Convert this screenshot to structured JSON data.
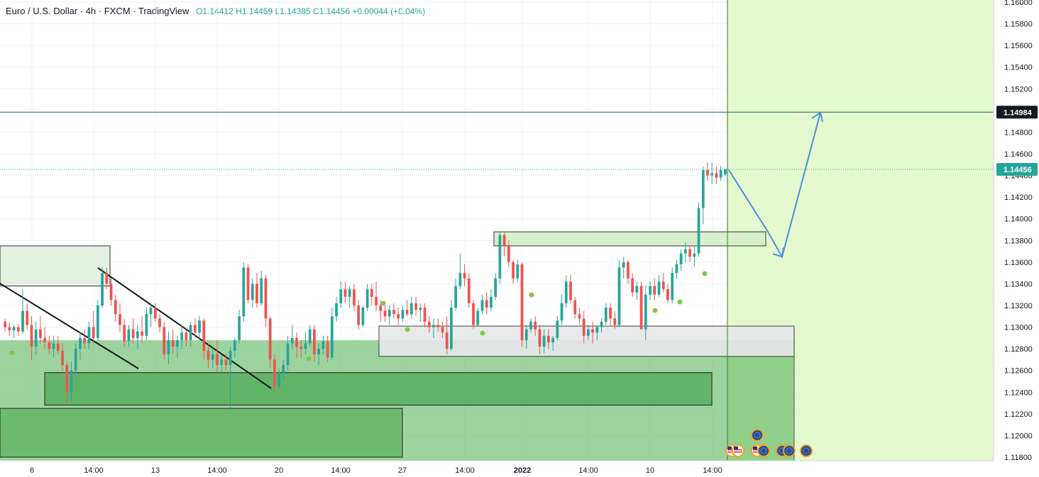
{
  "header": {
    "symbol": "Euro / U.S. Dollar · 4h · FXCM · TradingView",
    "open_label": "O",
    "open": "1.14412",
    "high_label": "H",
    "high": "1.14459",
    "low_label": "L",
    "low": "1.14385",
    "close_label": "C",
    "close": "1.14456",
    "change": "+0.00044 (+0.04%)"
  },
  "price_axis": {
    "ticks": [
      "1.16000",
      "1.15800",
      "1.15600",
      "1.15400",
      "1.15200",
      "1.15000",
      "1.14800",
      "1.14600",
      "1.14400",
      "1.14200",
      "1.14000",
      "1.13800",
      "1.13600",
      "1.13400",
      "1.13200",
      "1.13000",
      "1.12800",
      "1.12600",
      "1.12400",
      "1.12200",
      "1.12000",
      "1.11800"
    ],
    "target_label": "1.14984",
    "last_label": "1.14456"
  },
  "time_axis": {
    "ticks": [
      "6",
      "14:00",
      "13",
      "14:00",
      "20",
      "14:00",
      "27",
      "14:00",
      "2022",
      "14:00",
      "10",
      "14:00"
    ]
  },
  "colors": {
    "up": "#26a69a",
    "down": "#ef5350",
    "target_line": "#1e5f74",
    "arrow": "#4a90e2",
    "zone_green": "#4caf50",
    "forecast_bg": "#b9f08a"
  },
  "chart_data": {
    "type": "candlestick",
    "title": "Euro / U.S. Dollar · 4h · FXCM · TradingView",
    "ylim": [
      1.118,
      1.16
    ],
    "last_price": 1.14456,
    "target_price": 1.14984,
    "candles_ohlc": [
      [
        1.1305,
        1.1308,
        1.1296,
        1.13
      ],
      [
        1.13,
        1.1304,
        1.1292,
        1.1297
      ],
      [
        1.1297,
        1.1302,
        1.129,
        1.13
      ],
      [
        1.13,
        1.1303,
        1.1292,
        1.1296
      ],
      [
        1.1296,
        1.1335,
        1.1294,
        1.1315
      ],
      [
        1.1315,
        1.1322,
        1.1298,
        1.1302
      ],
      [
        1.1302,
        1.131,
        1.127,
        1.1282
      ],
      [
        1.1282,
        1.1305,
        1.1275,
        1.1298
      ],
      [
        1.1298,
        1.131,
        1.1285,
        1.129
      ],
      [
        1.129,
        1.13,
        1.128,
        1.1286
      ],
      [
        1.1286,
        1.1292,
        1.1275,
        1.128
      ],
      [
        1.128,
        1.1292,
        1.1272,
        1.1285
      ],
      [
        1.1285,
        1.1292,
        1.1275,
        1.1278
      ],
      [
        1.1278,
        1.1285,
        1.126,
        1.1265
      ],
      [
        1.1265,
        1.1268,
        1.123,
        1.124
      ],
      [
        1.124,
        1.1268,
        1.1232,
        1.126
      ],
      [
        1.126,
        1.1285,
        1.1255,
        1.128
      ],
      [
        1.128,
        1.1295,
        1.127,
        1.129
      ],
      [
        1.129,
        1.1298,
        1.128,
        1.1285
      ],
      [
        1.1285,
        1.1305,
        1.128,
        1.13
      ],
      [
        1.13,
        1.1315,
        1.1285,
        1.129
      ],
      [
        1.129,
        1.1325,
        1.1288,
        1.132
      ],
      [
        1.132,
        1.1355,
        1.1318,
        1.135
      ],
      [
        1.135,
        1.1355,
        1.1335,
        1.134
      ],
      [
        1.134,
        1.1345,
        1.132,
        1.1325
      ],
      [
        1.1325,
        1.133,
        1.1305,
        1.1312
      ],
      [
        1.1312,
        1.1322,
        1.1295,
        1.1302
      ],
      [
        1.1302,
        1.1308,
        1.1282,
        1.1287
      ],
      [
        1.1287,
        1.1302,
        1.1282,
        1.1298
      ],
      [
        1.1298,
        1.1308,
        1.1285,
        1.129
      ],
      [
        1.129,
        1.1302,
        1.128,
        1.1296
      ],
      [
        1.1296,
        1.131,
        1.1285,
        1.1292
      ],
      [
        1.1292,
        1.1318,
        1.1288,
        1.1312
      ],
      [
        1.1312,
        1.1322,
        1.13,
        1.1318
      ],
      [
        1.1318,
        1.1322,
        1.1305,
        1.1308
      ],
      [
        1.1308,
        1.1312,
        1.1295,
        1.13
      ],
      [
        1.13,
        1.1305,
        1.127,
        1.1275
      ],
      [
        1.1275,
        1.1296,
        1.1266,
        1.1288
      ],
      [
        1.1288,
        1.1298,
        1.1276,
        1.1282
      ],
      [
        1.1282,
        1.1292,
        1.1272,
        1.1288
      ],
      [
        1.1288,
        1.1302,
        1.128,
        1.1295
      ],
      [
        1.1295,
        1.1298,
        1.1282,
        1.1288
      ],
      [
        1.1288,
        1.1305,
        1.1282,
        1.1302
      ],
      [
        1.1302,
        1.1308,
        1.129,
        1.1295
      ],
      [
        1.1295,
        1.131,
        1.1288,
        1.1306
      ],
      [
        1.1306,
        1.1308,
        1.127,
        1.1278
      ],
      [
        1.1278,
        1.1285,
        1.1262,
        1.127
      ],
      [
        1.127,
        1.1282,
        1.1262,
        1.1275
      ],
      [
        1.1275,
        1.1288,
        1.1258,
        1.1265
      ],
      [
        1.1265,
        1.1275,
        1.1258,
        1.127
      ],
      [
        1.127,
        1.1275,
        1.126,
        1.1265
      ],
      [
        1.1265,
        1.1282,
        1.1224,
        1.1278
      ],
      [
        1.1278,
        1.129,
        1.1272,
        1.1288
      ],
      [
        1.1288,
        1.1316,
        1.1285,
        1.131
      ],
      [
        1.131,
        1.136,
        1.1305,
        1.1355
      ],
      [
        1.1355,
        1.1358,
        1.1322,
        1.1325
      ],
      [
        1.1325,
        1.1345,
        1.1318,
        1.134
      ],
      [
        1.134,
        1.135,
        1.1318,
        1.1322
      ],
      [
        1.1322,
        1.1352,
        1.132,
        1.1345
      ],
      [
        1.1345,
        1.1348,
        1.13,
        1.1308
      ],
      [
        1.1308,
        1.131,
        1.1262,
        1.127
      ],
      [
        1.127,
        1.1275,
        1.124,
        1.1245
      ],
      [
        1.1245,
        1.1262,
        1.1242,
        1.1258
      ],
      [
        1.1258,
        1.127,
        1.1252,
        1.1265
      ],
      [
        1.1265,
        1.1292,
        1.126,
        1.1285
      ],
      [
        1.1285,
        1.1302,
        1.128,
        1.129
      ],
      [
        1.129,
        1.1295,
        1.1272,
        1.1282
      ],
      [
        1.1282,
        1.1288,
        1.1272,
        1.128
      ],
      [
        1.128,
        1.1295,
        1.1275,
        1.1285
      ],
      [
        1.1285,
        1.1302,
        1.1282,
        1.1298
      ],
      [
        1.1298,
        1.1302,
        1.1268,
        1.1275
      ],
      [
        1.1275,
        1.1285,
        1.1265,
        1.128
      ],
      [
        1.128,
        1.1292,
        1.1275,
        1.1287
      ],
      [
        1.1287,
        1.1292,
        1.1268,
        1.1272
      ],
      [
        1.1272,
        1.1318,
        1.127,
        1.131
      ],
      [
        1.131,
        1.1328,
        1.1305,
        1.1322
      ],
      [
        1.1322,
        1.1342,
        1.1318,
        1.1335
      ],
      [
        1.1335,
        1.1342,
        1.1322,
        1.1328
      ],
      [
        1.1328,
        1.1338,
        1.1318,
        1.1335
      ],
      [
        1.1335,
        1.134,
        1.1315,
        1.132
      ],
      [
        1.132,
        1.1325,
        1.1298,
        1.1302
      ],
      [
        1.1302,
        1.132,
        1.13,
        1.1318
      ],
      [
        1.1318,
        1.134,
        1.1315,
        1.1335
      ],
      [
        1.1335,
        1.134,
        1.132,
        1.1328
      ],
      [
        1.1328,
        1.1342,
        1.1315,
        1.132
      ],
      [
        1.132,
        1.1325,
        1.1305,
        1.1315
      ],
      [
        1.1315,
        1.132,
        1.1305,
        1.131
      ],
      [
        1.131,
        1.132,
        1.1302,
        1.1316
      ],
      [
        1.1316,
        1.1322,
        1.1308,
        1.1312
      ],
      [
        1.1312,
        1.1318,
        1.1302,
        1.1308
      ],
      [
        1.1308,
        1.132,
        1.1305,
        1.1316
      ],
      [
        1.1316,
        1.1325,
        1.131,
        1.1312
      ],
      [
        1.1312,
        1.1328,
        1.1308,
        1.1322
      ],
      [
        1.1322,
        1.1328,
        1.131,
        1.1316
      ],
      [
        1.1316,
        1.1322,
        1.1305,
        1.1318
      ],
      [
        1.1318,
        1.1322,
        1.13,
        1.1305
      ],
      [
        1.1305,
        1.131,
        1.1295,
        1.13
      ],
      [
        1.13,
        1.1308,
        1.129,
        1.1302
      ],
      [
        1.1302,
        1.1308,
        1.1296,
        1.13
      ],
      [
        1.13,
        1.1305,
        1.129,
        1.1295
      ],
      [
        1.1295,
        1.131,
        1.1275,
        1.128
      ],
      [
        1.128,
        1.1325,
        1.1278,
        1.1318
      ],
      [
        1.1318,
        1.1345,
        1.1315,
        1.1338
      ],
      [
        1.1338,
        1.1368,
        1.1335,
        1.135
      ],
      [
        1.135,
        1.1358,
        1.1338,
        1.1345
      ],
      [
        1.1345,
        1.135,
        1.1318,
        1.1322
      ],
      [
        1.1322,
        1.1325,
        1.1298,
        1.1302
      ],
      [
        1.1302,
        1.1318,
        1.13,
        1.1315
      ],
      [
        1.1315,
        1.133,
        1.1312,
        1.1325
      ],
      [
        1.1325,
        1.1332,
        1.1312,
        1.1318
      ],
      [
        1.1318,
        1.1335,
        1.1315,
        1.1328
      ],
      [
        1.1328,
        1.135,
        1.1325,
        1.1345
      ],
      [
        1.1345,
        1.1388,
        1.134,
        1.1385
      ],
      [
        1.1385,
        1.1388,
        1.1365,
        1.1375
      ],
      [
        1.1375,
        1.138,
        1.1355,
        1.136
      ],
      [
        1.136,
        1.1362,
        1.134,
        1.1345
      ],
      [
        1.1345,
        1.1362,
        1.1342,
        1.1358
      ],
      [
        1.1358,
        1.136,
        1.1282,
        1.1288
      ],
      [
        1.1288,
        1.1302,
        1.128,
        1.1298
      ],
      [
        1.1298,
        1.1308,
        1.1295,
        1.1305
      ],
      [
        1.1305,
        1.131,
        1.1292,
        1.1298
      ],
      [
        1.1298,
        1.1302,
        1.1275,
        1.1282
      ],
      [
        1.1282,
        1.1298,
        1.1276,
        1.1292
      ],
      [
        1.1292,
        1.1298,
        1.128,
        1.1286
      ],
      [
        1.1286,
        1.1292,
        1.1278,
        1.129
      ],
      [
        1.129,
        1.131,
        1.1288,
        1.1306
      ],
      [
        1.1306,
        1.133,
        1.1302,
        1.1322
      ],
      [
        1.1322,
        1.1348,
        1.1318,
        1.1342
      ],
      [
        1.1342,
        1.1348,
        1.1322,
        1.1325
      ],
      [
        1.1325,
        1.1328,
        1.1308,
        1.1312
      ],
      [
        1.1312,
        1.1318,
        1.1302,
        1.1308
      ],
      [
        1.1308,
        1.1315,
        1.1285,
        1.1292
      ],
      [
        1.1292,
        1.1302,
        1.1288,
        1.1298
      ],
      [
        1.1298,
        1.1305,
        1.1285,
        1.1295
      ],
      [
        1.1295,
        1.1302,
        1.1288,
        1.13
      ],
      [
        1.13,
        1.1308,
        1.1295,
        1.1305
      ],
      [
        1.1305,
        1.1322,
        1.1302,
        1.1318
      ],
      [
        1.1318,
        1.1322,
        1.1302,
        1.1308
      ],
      [
        1.1308,
        1.1315,
        1.1298,
        1.1302
      ],
      [
        1.1302,
        1.1362,
        1.13,
        1.1355
      ],
      [
        1.1355,
        1.1365,
        1.1345,
        1.136
      ],
      [
        1.136,
        1.1362,
        1.134,
        1.1345
      ],
      [
        1.1345,
        1.135,
        1.1328,
        1.1332
      ],
      [
        1.1332,
        1.1342,
        1.1325,
        1.1338
      ],
      [
        1.1338,
        1.1342,
        1.1302,
        1.1298
      ],
      [
        1.1298,
        1.1338,
        1.1288,
        1.133
      ],
      [
        1.133,
        1.1342,
        1.1325,
        1.1338
      ],
      [
        1.1338,
        1.1345,
        1.1325,
        1.133
      ],
      [
        1.133,
        1.1348,
        1.1328,
        1.1342
      ],
      [
        1.1342,
        1.135,
        1.1332,
        1.1335
      ],
      [
        1.1335,
        1.134,
        1.1322,
        1.1325
      ],
      [
        1.1325,
        1.1355,
        1.1322,
        1.135
      ],
      [
        1.135,
        1.1362,
        1.1345,
        1.1358
      ],
      [
        1.1358,
        1.1372,
        1.1352,
        1.1368
      ],
      [
        1.1368,
        1.1378,
        1.136,
        1.1372
      ],
      [
        1.1372,
        1.1375,
        1.136,
        1.1365
      ],
      [
        1.1365,
        1.1375,
        1.1356,
        1.1368
      ],
      [
        1.1368,
        1.1415,
        1.1365,
        1.141
      ],
      [
        1.141,
        1.1448,
        1.1395,
        1.1445
      ],
      [
        1.1445,
        1.1452,
        1.1435,
        1.144
      ],
      [
        1.144,
        1.1452,
        1.1432,
        1.1442
      ],
      [
        1.1442,
        1.1448,
        1.1432,
        1.1438
      ],
      [
        1.1438,
        1.1449,
        1.1435,
        1.1445
      ],
      [
        1.1441,
        1.1446,
        1.1439,
        1.1446
      ]
    ],
    "zones": [
      {
        "label": "upper supply zone left",
        "from": 1.1338,
        "to": 1.1375
      },
      {
        "label": "supply zone",
        "from": 1.1375,
        "to": 1.1388
      },
      {
        "label": "support zone grey",
        "from": 1.1273,
        "to": 1.1301
      },
      {
        "label": "demand zone",
        "from": 1.1228,
        "to": 1.1258
      },
      {
        "label": "lower demand zone",
        "from": 1.118,
        "to": 1.1225
      }
    ],
    "forecast_path": [
      1.1445,
      1.1388,
      1.1365,
      1.1498
    ],
    "event_flags": [
      "US",
      "US",
      "EU",
      "US",
      "EU",
      "EU",
      "EU",
      "EU"
    ]
  }
}
